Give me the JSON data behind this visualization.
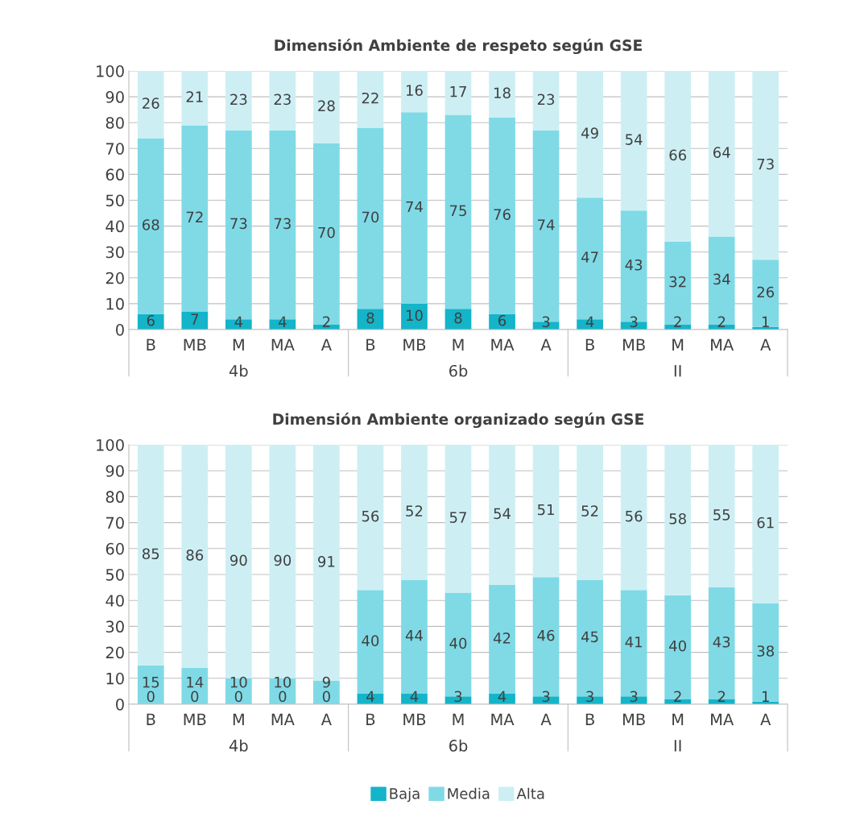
{
  "chart_data": [
    {
      "type": "bar",
      "stacked": true,
      "title": "Dimensión Ambiente de respeto según GSE",
      "categories": [
        "B",
        "MB",
        "M",
        "MA",
        "A",
        "B",
        "MB",
        "M",
        "MA",
        "A",
        "B",
        "MB",
        "M",
        "MA",
        "A"
      ],
      "annotations": [
        "4b",
        "6b",
        "II"
      ],
      "series": [
        {
          "color": "#14b4c9",
          "values": [
            6,
            7,
            4,
            4,
            2,
            8,
            10,
            8,
            6,
            3,
            4,
            3,
            2,
            2,
            1
          ]
        },
        {
          "color": "#7fdae6",
          "values": [
            68,
            72,
            73,
            73,
            70,
            70,
            74,
            75,
            76,
            74,
            47,
            43,
            32,
            34,
            26
          ]
        },
        {
          "color": "#cdeff4",
          "values": [
            26,
            21,
            23,
            23,
            28,
            22,
            16,
            17,
            18,
            23,
            49,
            54,
            66,
            64,
            73
          ]
        }
      ],
      "ylim": [
        0,
        100
      ],
      "yticks": [
        0,
        10,
        20,
        30,
        40,
        50,
        60,
        70,
        80,
        90,
        100
      ],
      "grid": "y",
      "data_labels": true,
      "legend": false
    },
    {
      "type": "bar",
      "stacked": true,
      "title": "Dimensión Ambiente organizado según GSE",
      "categories": [
        "B",
        "MB",
        "M",
        "MA",
        "A",
        "B",
        "MB",
        "M",
        "MA",
        "A",
        "B",
        "MB",
        "M",
        "MA",
        "A"
      ],
      "annotations": [
        "4b",
        "6b",
        "II"
      ],
      "series": [
        {
          "name": "Baja",
          "color": "#14b4c9",
          "values": [
            0,
            0,
            0,
            0,
            0,
            4,
            4,
            3,
            4,
            3,
            3,
            3,
            2,
            2,
            1
          ]
        },
        {
          "name": "Media",
          "color": "#7fdae6",
          "values": [
            15,
            14,
            10,
            10,
            9,
            40,
            44,
            40,
            42,
            46,
            45,
            41,
            40,
            43,
            38
          ]
        },
        {
          "name": "Alta",
          "color": "#cdeff4",
          "values": [
            85,
            86,
            90,
            90,
            91,
            56,
            52,
            57,
            54,
            51,
            52,
            56,
            58,
            55,
            61
          ]
        }
      ],
      "ylim": [
        0,
        100
      ],
      "yticks": [
        0,
        10,
        20,
        30,
        40,
        50,
        60,
        70,
        80,
        90,
        100
      ],
      "grid": "y",
      "data_labels": true,
      "legend": "bottom"
    }
  ]
}
